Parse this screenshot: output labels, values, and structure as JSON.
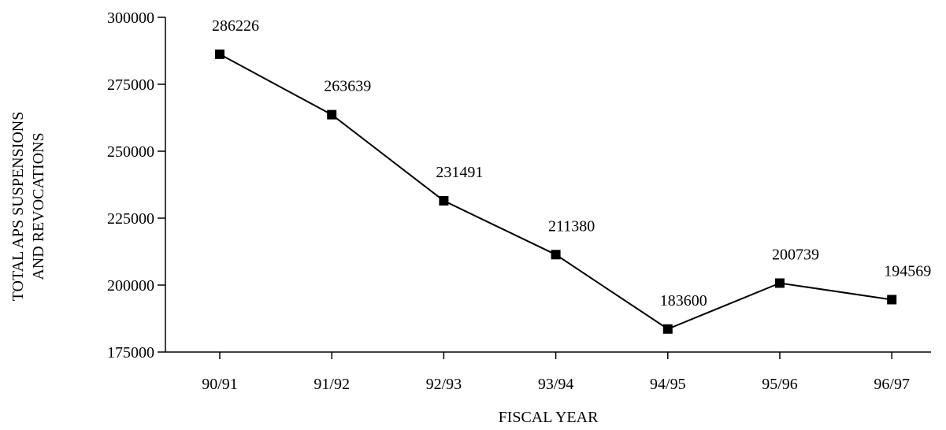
{
  "chart_data": {
    "type": "line",
    "title": "",
    "xlabel": "FISCAL YEAR",
    "ylabel_lines": [
      "TOTAL APS SUSPENSIONS",
      "AND REVOCATIONS"
    ],
    "categories": [
      "90/91",
      "91/92",
      "92/93",
      "93/94",
      "94/95",
      "95/96",
      "96/97"
    ],
    "values": [
      286226,
      263639,
      231491,
      211380,
      183600,
      200739,
      194569
    ],
    "data_labels": [
      "286226",
      "263639",
      "231491",
      "211380",
      "183600",
      "200739",
      "194569"
    ],
    "ylim": [
      175000,
      300000
    ],
    "yticks": [
      175000,
      200000,
      225000,
      250000,
      275000,
      300000
    ],
    "ytick_labels": [
      "175000",
      "200000",
      "225000",
      "250000",
      "275000",
      "300000"
    ],
    "grid": false,
    "legend": "none",
    "marker": "square",
    "color": "#000000"
  }
}
